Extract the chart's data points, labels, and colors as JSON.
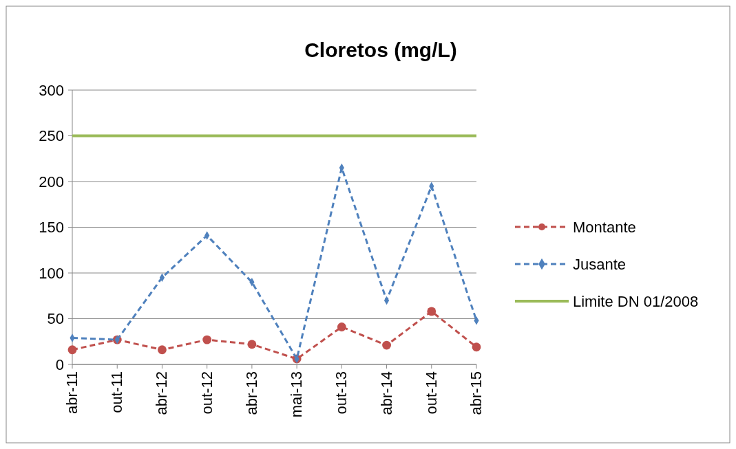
{
  "chart_data": {
    "type": "line",
    "title": "Cloretos (mg/L)",
    "categories": [
      "abr-11",
      "out-11",
      "abr-12",
      "out-12",
      "abr-13",
      "mai-13",
      "out-13",
      "abr-14",
      "out-14",
      "abr-15"
    ],
    "series": [
      {
        "name": "Montante",
        "color": "#c0504d",
        "marker": "circle",
        "line_style": "dashed",
        "values": [
          16,
          27,
          16,
          27,
          22,
          6,
          41,
          21,
          58,
          19
        ]
      },
      {
        "name": "Jusante",
        "color": "#4f81bd",
        "marker": "diamond",
        "line_style": "dashed",
        "values": [
          29,
          27,
          95,
          141,
          90,
          6,
          215,
          70,
          195,
          48
        ]
      },
      {
        "name": "Limite DN 01/2008",
        "color": "#9bbb59",
        "marker": "none",
        "line_style": "solid",
        "values": [
          250,
          250,
          250,
          250,
          250,
          250,
          250,
          250,
          250,
          250
        ]
      }
    ],
    "ylim": [
      0,
      300
    ],
    "yticks": [
      0,
      50,
      100,
      150,
      200,
      250,
      300
    ],
    "grid": "y",
    "legend": "right"
  }
}
